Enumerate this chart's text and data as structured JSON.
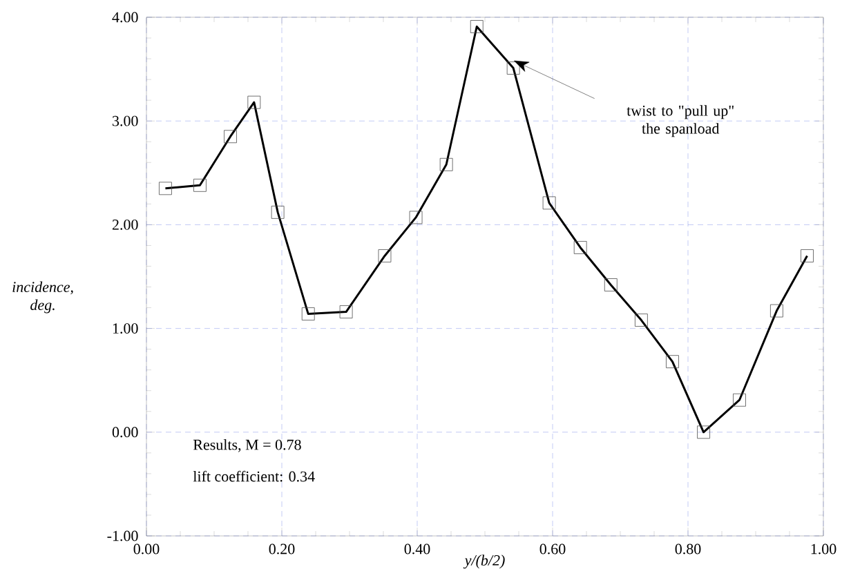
{
  "chart_data": {
    "type": "line",
    "xlabel": "y/(b/2)",
    "ylabel": "incidence, deg.",
    "x": [
      0.028,
      0.079,
      0.124,
      0.159,
      0.194,
      0.239,
      0.295,
      0.352,
      0.398,
      0.443,
      0.488,
      0.542,
      0.595,
      0.641,
      0.686,
      0.731,
      0.777,
      0.823,
      0.876,
      0.931,
      0.976
    ],
    "series": [
      {
        "color": "#000000",
        "values": [
          2.35,
          2.38,
          2.85,
          3.18,
          2.12,
          1.14,
          1.16,
          1.7,
          2.07,
          2.58,
          3.91,
          3.51,
          2.21,
          1.78,
          1.42,
          1.08,
          0.68,
          0.0,
          0.31,
          1.17,
          1.7
        ]
      }
    ],
    "xlim": [
      0,
      1
    ],
    "ylim": [
      -1,
      4
    ],
    "xticks": [
      {
        "value": 0,
        "label": "0.00"
      },
      {
        "value": 0.2,
        "label": "0.20"
      },
      {
        "value": 0.4,
        "label": "0.40"
      },
      {
        "value": 0.6,
        "label": "0.60"
      },
      {
        "value": 0.8,
        "label": "0.80"
      },
      {
        "value": 1,
        "label": "1.00"
      }
    ],
    "yticks": [
      {
        "value": -1,
        "label": "-1.00"
      },
      {
        "value": 0,
        "label": "0.00"
      },
      {
        "value": 1,
        "label": "1.00"
      },
      {
        "value": 2,
        "label": "2.00"
      },
      {
        "value": 3,
        "label": "3.00"
      },
      {
        "value": 4,
        "label": "4.00"
      }
    ],
    "grid": true,
    "marker": "square",
    "line_style": "solid",
    "annotations": [
      "twist to \"pull up\" the spanload",
      "Results, M = 0.78",
      "lift coefficient: 0.34"
    ]
  }
}
